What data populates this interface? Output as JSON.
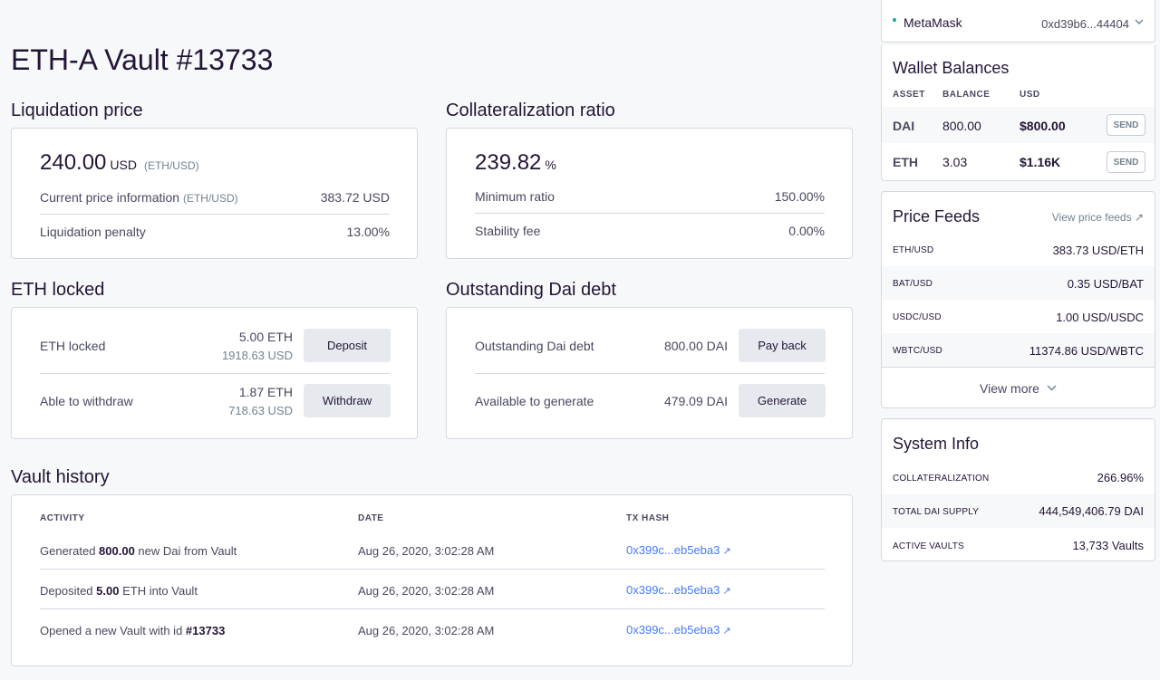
{
  "page": {
    "title": "ETH-A Vault #13733"
  },
  "liquidation": {
    "section_title": "Liquidation price",
    "value": "240.00",
    "unit": "USD",
    "pair": "(ETH/USD)",
    "current_price_label": "Current price information",
    "current_price_pair": "(ETH/USD)",
    "current_price_value": "383.72 USD",
    "penalty_label": "Liquidation penalty",
    "penalty_value": "13.00%"
  },
  "collateralization": {
    "section_title": "Collateralization ratio",
    "value": "239.82",
    "unit": "%",
    "min_ratio_label": "Minimum ratio",
    "min_ratio_value": "150.00%",
    "stability_fee_label": "Stability fee",
    "stability_fee_value": "0.00%"
  },
  "eth_locked": {
    "section_title": "ETH locked",
    "locked_label": "ETH locked",
    "locked_value": "5.00 ETH",
    "locked_usd": "1918.63 USD",
    "deposit_button": "Deposit",
    "withdraw_label": "Able to withdraw",
    "withdraw_value": "1.87 ETH",
    "withdraw_usd": "718.63 USD",
    "withdraw_button": "Withdraw"
  },
  "debt": {
    "section_title": "Outstanding Dai debt",
    "debt_label": "Outstanding Dai debt",
    "debt_value": "800.00 DAI",
    "payback_button": "Pay back",
    "generate_label": "Available to generate",
    "generate_value": "479.09 DAI",
    "generate_button": "Generate"
  },
  "history": {
    "section_title": "Vault history",
    "headers": {
      "activity": "ACTIVITY",
      "date": "DATE",
      "tx": "TX HASH"
    },
    "rows": [
      {
        "pre": "Generated ",
        "bold": "800.00",
        "post": " new Dai from Vault",
        "date": "Aug 26, 2020, 3:02:28 AM",
        "tx": "0x399c...eb5eba3"
      },
      {
        "pre": "Deposited ",
        "bold": "5.00",
        "post": " ETH into Vault",
        "date": "Aug 26, 2020, 3:02:28 AM",
        "tx": "0x399c...eb5eba3"
      },
      {
        "pre": "Opened a new Vault with id ",
        "bold": "#13733",
        "post": "",
        "date": "Aug 26, 2020, 3:02:28 AM",
        "tx": "0x399c...eb5eba3"
      }
    ]
  },
  "account": {
    "wallet_name": "MetaMask",
    "address": "0xd39b6...44404",
    "status_color": "#1aab9b"
  },
  "wallet_balances": {
    "title": "Wallet Balances",
    "headers": {
      "asset": "ASSET",
      "balance": "BALANCE",
      "usd": "USD"
    },
    "rows": [
      {
        "asset": "DAI",
        "balance": "800.00",
        "usd": "$800.00",
        "action": "SEND"
      },
      {
        "asset": "ETH",
        "balance": "3.03",
        "usd": "$1.16K",
        "action": "SEND"
      }
    ]
  },
  "price_feeds": {
    "title": "Price Feeds",
    "view_link": "View price feeds",
    "rows": [
      {
        "pair": "ETH/USD",
        "value": "383.73 USD/ETH"
      },
      {
        "pair": "BAT/USD",
        "value": "0.35 USD/BAT"
      },
      {
        "pair": "USDC/USD",
        "value": "1.00 USD/USDC"
      },
      {
        "pair": "WBTC/USD",
        "value": "11374.86 USD/WBTC"
      }
    ],
    "view_more": "View more"
  },
  "system_info": {
    "title": "System Info",
    "rows": [
      {
        "label": "COLLATERALIZATION",
        "value": "266.96%"
      },
      {
        "label": "TOTAL DAI SUPPLY",
        "value": "444,549,406.79 DAI"
      },
      {
        "label": "ACTIVE VAULTS",
        "value": "13,733 Vaults"
      }
    ]
  }
}
